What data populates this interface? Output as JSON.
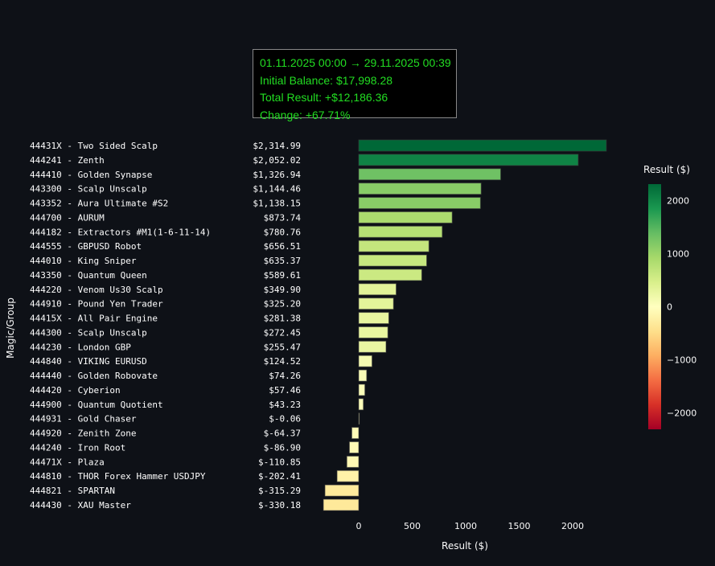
{
  "info": {
    "period": "01.11.2025 00:00 → 29.11.2025 00:39",
    "initial_balance": "Initial Balance: $17,998.28",
    "total_result": "Total Result: +$12,186.36",
    "change": "Change: +67.71%"
  },
  "colors": {
    "background": "#0e1117",
    "info_text": "#22dd22",
    "info_border": "#888888",
    "colorscale": [
      "#a50026",
      "#d73027",
      "#f46d43",
      "#fdae61",
      "#fee08b",
      "#ffffbf",
      "#d9ef8b",
      "#a6d96a",
      "#66bd63",
      "#1a9850",
      "#006837"
    ]
  },
  "chart_data": {
    "type": "bar",
    "orientation": "horizontal",
    "title": "",
    "xlabel": "Result ($)",
    "ylabel": "Magic/Group",
    "xlim": [
      -330.18,
      2314.99
    ],
    "xticks": [
      0,
      500,
      1000,
      1500,
      2000
    ],
    "xtick_labels": [
      "0",
      "500",
      "1000",
      "1500",
      "2000"
    ],
    "categories": [
      "44431X - Two Sided Scalp",
      "444241 - Zenth",
      "444410 - Golden Synapse",
      "443300 - Scalp Unscalp",
      "443352 - Aura Ultimate #S2",
      "444700 - AURUM",
      "444182 - Extractors #M1(1-6-11-14)",
      "444555 - GBPUSD Robot",
      "444010 - King Sniper",
      "443350 - Quantum Queen",
      "444220 - Venom Us30 Scalp",
      "444910 - Pound Yen Trader",
      "44415X - All Pair Engine",
      "444300 - Scalp Unscalp",
      "444230 - London GBP",
      "444840 - VIKING EURUSD",
      "444440 - Golden Robovate",
      "444420 - Cyberion",
      "444900 - Quantum Quotient",
      "444931 - Gold Chaser",
      "444920 - Zenith Zone",
      "444240 - Iron Root",
      "44471X - Plaza",
      "444810 - THOR Forex Hammer USDJPY",
      "444821 - SPARTAN",
      "444430 - XAU Master"
    ],
    "values": [
      2314.99,
      2052.02,
      1326.94,
      1144.46,
      1138.15,
      873.74,
      780.76,
      656.51,
      635.37,
      589.61,
      349.9,
      325.2,
      281.38,
      272.45,
      255.47,
      124.52,
      74.26,
      57.46,
      43.23,
      -0.06,
      -64.37,
      -86.9,
      -110.85,
      -202.41,
      -315.29,
      -330.18
    ],
    "value_labels": [
      "$2,314.99",
      "$2,052.02",
      "$1,326.94",
      "$1,144.46",
      "$1,138.15",
      "$873.74",
      "$780.76",
      "$656.51",
      "$635.37",
      "$589.61",
      "$349.90",
      "$325.20",
      "$281.38",
      "$272.45",
      "$255.47",
      "$124.52",
      "$74.26",
      "$57.46",
      "$43.23",
      "$-0.06",
      "$-64.37",
      "$-86.90",
      "$-110.85",
      "$-202.41",
      "$-315.29",
      "$-330.18"
    ],
    "colorbar": {
      "title": "Result ($)",
      "range": [
        -2314.99,
        2314.99
      ],
      "ticks": [
        2000,
        1000,
        0,
        -1000,
        -2000
      ],
      "tick_labels": [
        "2000",
        "1000",
        "0",
        "−1000",
        "−2000"
      ]
    },
    "legend": "none",
    "grid": false
  }
}
